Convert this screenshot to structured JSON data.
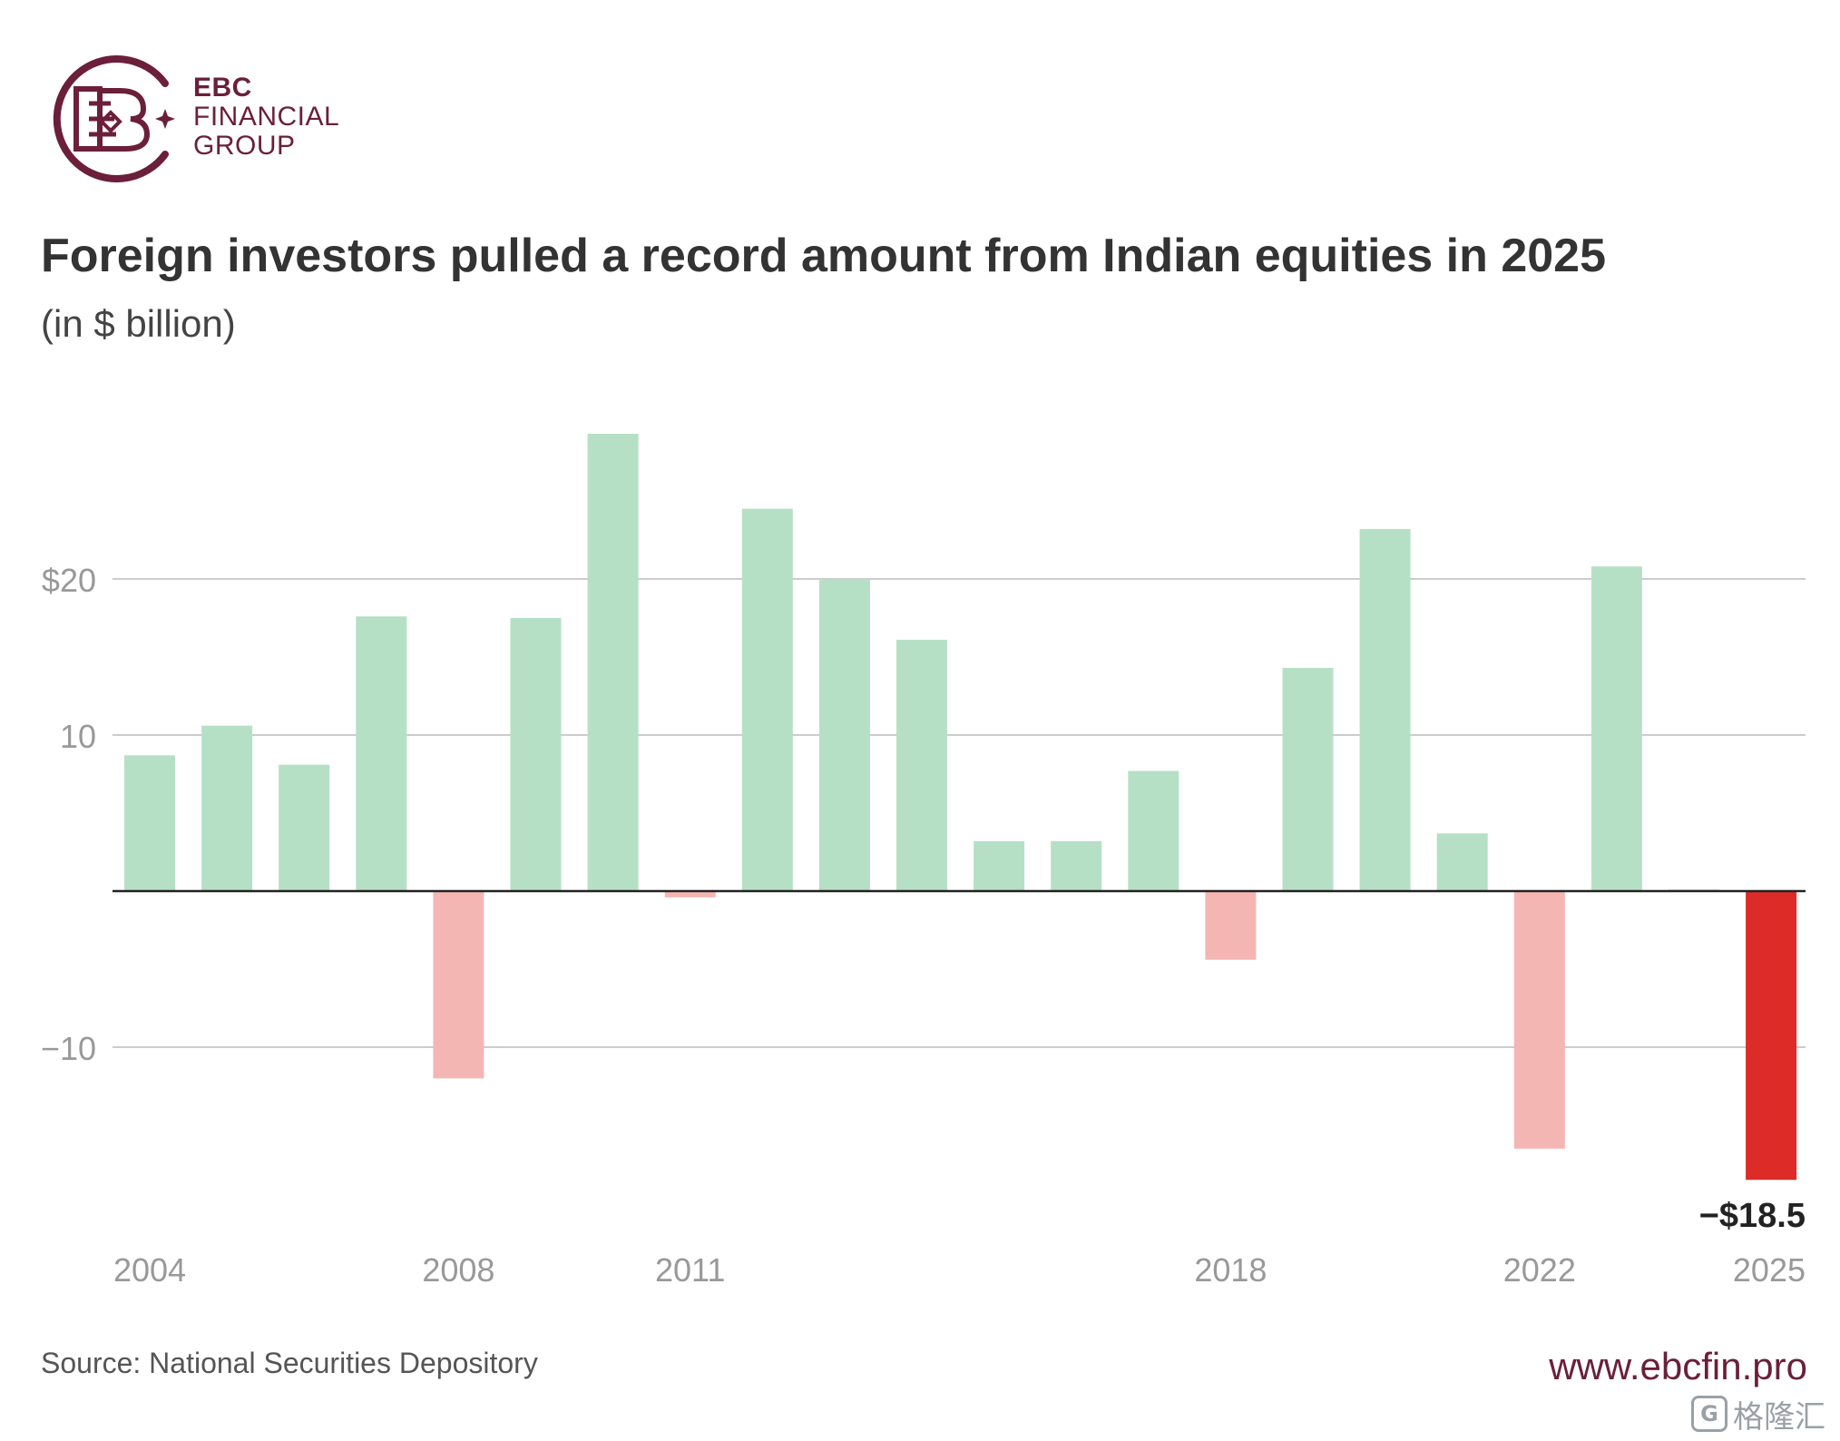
{
  "brand": {
    "line1": "EBC",
    "line2": "FINANCIAL",
    "line3": "GROUP",
    "color": "#6b1f3a"
  },
  "header": {
    "title": "Foreign investors pulled a record amount from Indian equities in 2025",
    "subtitle": "(in $ billion)"
  },
  "footer": {
    "source": "Source: National Securities Depository",
    "website": "www.ebcfin.pro",
    "watermark_text": "格隆汇",
    "watermark_icon": "G"
  },
  "chart_data": {
    "type": "bar",
    "title": "Foreign investors pulled a record amount from Indian equities in 2025",
    "subtitle": "(in $ billion)",
    "xlabel": "",
    "ylabel": "",
    "ylim": [
      -20,
      30
    ],
    "grid": true,
    "legend": "none",
    "categories": [
      "2004",
      "2005",
      "2006",
      "2007",
      "2008",
      "2009",
      "2010",
      "2011",
      "2012",
      "2013",
      "2014",
      "2015",
      "2016",
      "2017",
      "2018",
      "2019",
      "2020",
      "2021",
      "2022",
      "2023",
      "2024",
      "2025"
    ],
    "values": [
      8.7,
      10.6,
      8.1,
      17.6,
      -12.0,
      17.5,
      29.3,
      -0.4,
      24.5,
      20.0,
      16.1,
      3.2,
      3.2,
      7.7,
      -4.4,
      14.3,
      23.2,
      3.7,
      -16.5,
      20.8,
      0.1,
      -18.5
    ],
    "y_ticks": [
      {
        "value": 20,
        "label": "$20"
      },
      {
        "value": 10,
        "label": "10"
      },
      {
        "value": -10,
        "label": "−10"
      }
    ],
    "x_tick_labels": [
      {
        "category": "2004",
        "label": "2004"
      },
      {
        "category": "2008",
        "label": "2008"
      },
      {
        "category": "2011",
        "label": "2011"
      },
      {
        "category": "2018",
        "label": "2018"
      },
      {
        "category": "2022",
        "label": "2022"
      },
      {
        "category": "2025",
        "label": "2025"
      }
    ],
    "annotations": [
      {
        "category": "2025",
        "label": "−$18.5"
      }
    ],
    "colors": {
      "positive": "#b6e0c5",
      "negative": "#f4b6b3",
      "highlight": "#dd2b28",
      "grid": "#cccccc",
      "axis": "#222222",
      "tick_label": "#999999"
    },
    "highlight_category": "2025"
  }
}
